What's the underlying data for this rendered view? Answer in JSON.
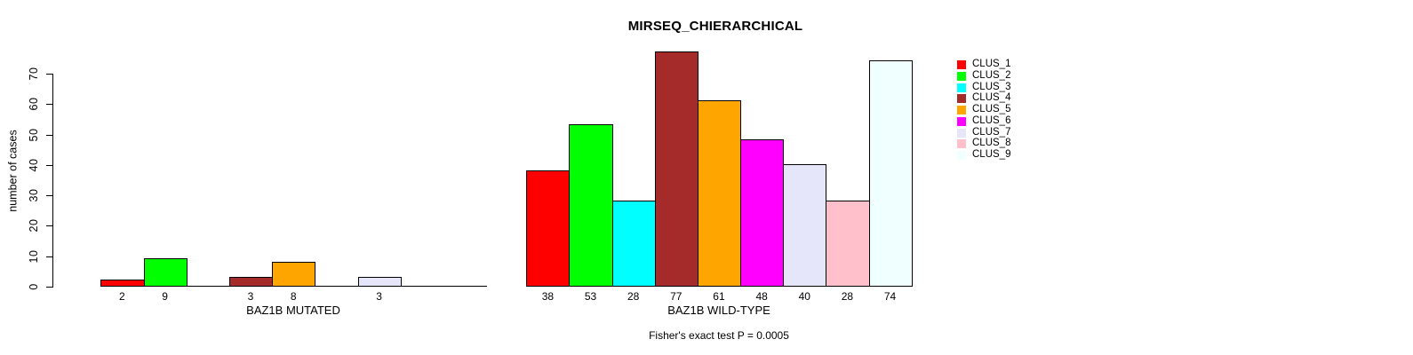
{
  "chart_data": {
    "type": "bar",
    "title": "MIRSEQ_CHIERARCHICAL",
    "ylabel": "number of cases",
    "footer": "Fisher's exact test P = 0.0005",
    "yticks": [
      0,
      10,
      20,
      30,
      40,
      50,
      60,
      70
    ],
    "ylim": [
      0,
      77
    ],
    "grid": false,
    "legend_position": "right-top",
    "legend": [
      {
        "label": "CLUS_1",
        "color": "#FF0000"
      },
      {
        "label": "CLUS_2",
        "color": "#00FF00"
      },
      {
        "label": "CLUS_3",
        "color": "#00FFFF"
      },
      {
        "label": "CLUS_4",
        "color": "#A52A2A"
      },
      {
        "label": "CLUS_5",
        "color": "#FFA500"
      },
      {
        "label": "CLUS_6",
        "color": "#FF00FF"
      },
      {
        "label": "CLUS_7",
        "color": "#E6E6FA"
      },
      {
        "label": "CLUS_8",
        "color": "#FFC0CB"
      },
      {
        "label": "CLUS_9",
        "color": "#F0FFFF"
      }
    ],
    "groups": [
      {
        "label": "BAZ1B MUTATED",
        "values": [
          2,
          9,
          0,
          3,
          8,
          0,
          3,
          0,
          0
        ],
        "bar_labels": [
          "2",
          "9",
          "",
          "3",
          "8",
          "",
          "3",
          "",
          ""
        ]
      },
      {
        "label": "BAZ1B WILD-TYPE",
        "values": [
          38,
          53,
          28,
          77,
          61,
          48,
          40,
          28,
          74
        ],
        "bar_labels": [
          "38",
          "53",
          "28",
          "77",
          "61",
          "48",
          "40",
          "28",
          "74"
        ]
      }
    ]
  },
  "colors": {
    "axis": "#000000",
    "text": "#000000",
    "background": "#FFFFFF"
  }
}
